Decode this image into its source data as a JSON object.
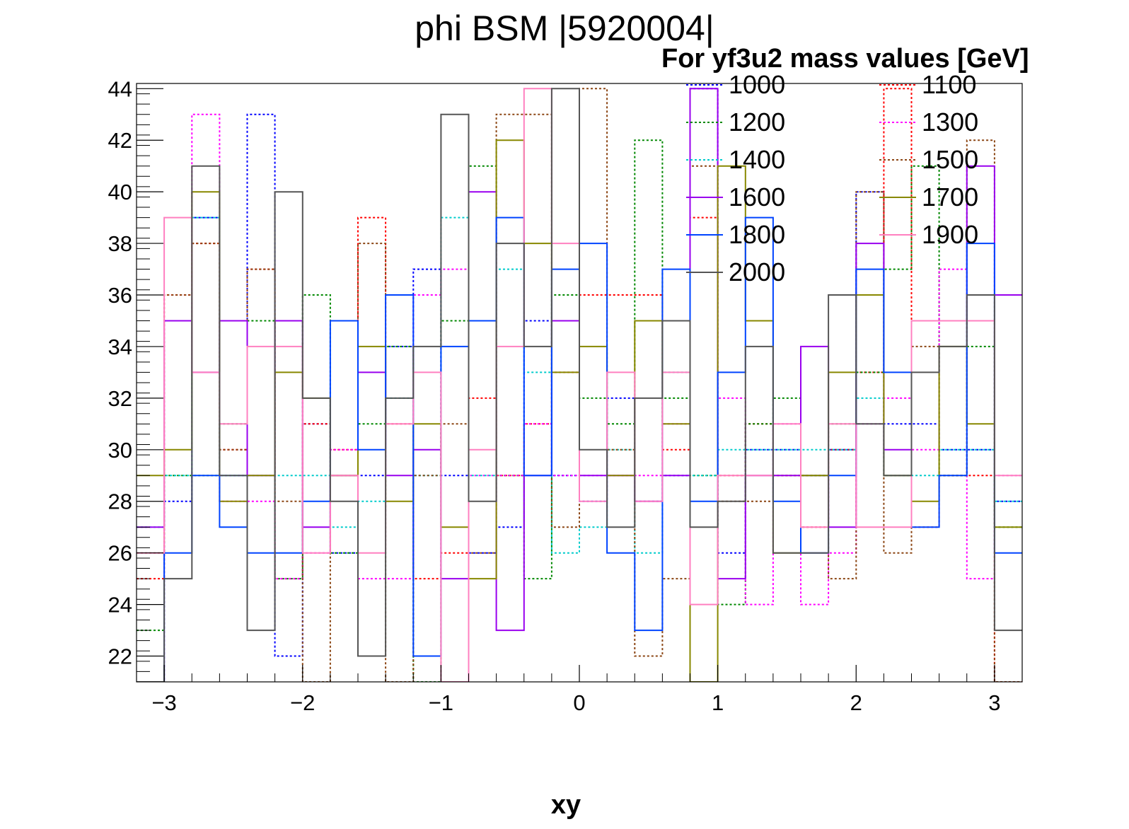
{
  "chart_data": {
    "type": "line",
    "style": "step-histogram",
    "title": "phi BSM |5920004|",
    "xlabel": "xy",
    "ylabel": "",
    "xlim": [
      -3.2,
      3.2
    ],
    "ylim": [
      21,
      44.2
    ],
    "xticks": [
      -3,
      -2,
      -1,
      0,
      1,
      2,
      3
    ],
    "xtick_labels": [
      "−3",
      "−2",
      "−1",
      "0",
      "1",
      "2",
      "3"
    ],
    "yticks": [
      22,
      24,
      26,
      28,
      30,
      32,
      34,
      36,
      38,
      40,
      42,
      44
    ],
    "ytick_labels": [
      "22",
      "24",
      "26",
      "28",
      "30",
      "32",
      "34",
      "36",
      "38",
      "40",
      "42",
      "44"
    ],
    "grid": false,
    "legend": {
      "title": "For yf3u2 mass values [GeV]",
      "position": "top-right",
      "columns": 2
    },
    "bin_edges": [
      -3.2,
      -3.0,
      -2.8,
      -2.6,
      -2.4,
      -2.2,
      -2.0,
      -1.8,
      -1.6,
      -1.4,
      -1.2,
      -1.0,
      -0.8,
      -0.6,
      -0.4,
      -0.2,
      0.0,
      0.2,
      0.4,
      0.6,
      0.8,
      1.0,
      1.2,
      1.4,
      1.6,
      1.8,
      2.0,
      2.2,
      2.4,
      2.6,
      2.8,
      3.0,
      3.2
    ],
    "series": [
      {
        "name": "1000",
        "color": "#0000ff",
        "dashed": true,
        "values": [
          21,
          28,
          39,
          29,
          43,
          22,
          31,
          26,
          29,
          34,
          37,
          29,
          26,
          27,
          35,
          29,
          28,
          32,
          28,
          29,
          44,
          26,
          30,
          30,
          29,
          30,
          40,
          31,
          31,
          30,
          30,
          28
        ]
      },
      {
        "name": "1100",
        "color": "#ff0000",
        "dashed": true,
        "values": [
          25,
          36,
          38,
          30,
          37,
          25,
          31,
          30,
          39,
          31,
          25,
          26,
          32,
          29,
          31,
          33,
          36,
          36,
          36,
          30,
          39,
          29,
          31,
          29,
          27,
          30,
          33,
          44,
          27,
          29,
          29,
          21
        ]
      },
      {
        "name": "1200",
        "color": "#008800",
        "dashed": true,
        "values": [
          23,
          29,
          29,
          31,
          35,
          25,
          36,
          26,
          31,
          34,
          21,
          35,
          41,
          29,
          25,
          36,
          32,
          31,
          42,
          32,
          29,
          24,
          31,
          32,
          29,
          31,
          33,
          37,
          41,
          29,
          34,
          27
        ]
      },
      {
        "name": "1300",
        "color": "#ff00ff",
        "dashed": true,
        "values": [
          21,
          35,
          43,
          28,
          28,
          25,
          26,
          30,
          25,
          25,
          36,
          37,
          29,
          29,
          31,
          29,
          29,
          29,
          29,
          31,
          44,
          32,
          24,
          31,
          24,
          26,
          31,
          32,
          30,
          37,
          25,
          29
        ]
      },
      {
        "name": "1400",
        "color": "#00cccc",
        "dashed": true,
        "values": [
          27,
          29,
          39,
          29,
          29,
          29,
          29,
          27,
          28,
          32,
          29,
          39,
          29,
          37,
          33,
          26,
          27,
          30,
          26,
          33,
          29,
          30,
          30,
          30,
          30,
          30,
          32,
          29,
          29,
          30,
          30,
          28
        ]
      },
      {
        "name": "1500",
        "color": "#8b4513",
        "dashed": true,
        "values": [
          26,
          36,
          38,
          30,
          37,
          28,
          21,
          29,
          38,
          21,
          29,
          31,
          26,
          43,
          43,
          27,
          44,
          30,
          22,
          25,
          41,
          28,
          28,
          29,
          29,
          25,
          40,
          26,
          34,
          29,
          42,
          21
        ]
      },
      {
        "name": "1600",
        "color": "#9900ee",
        "dashed": false,
        "values": [
          27,
          35,
          33,
          35,
          29,
          35,
          27,
          29,
          33,
          29,
          30,
          25,
          40,
          23,
          29,
          35,
          29,
          29,
          28,
          29,
          44,
          25,
          29,
          29,
          34,
          27,
          38,
          30,
          35,
          35,
          41,
          36
        ]
      },
      {
        "name": "1700",
        "color": "#888800",
        "dashed": false,
        "values": [
          29,
          30,
          40,
          28,
          29,
          33,
          32,
          29,
          34,
          28,
          31,
          27,
          25,
          42,
          38,
          33,
          34,
          29,
          35,
          31,
          21,
          41,
          35,
          26,
          29,
          33,
          36,
          29,
          28,
          34,
          31,
          27
        ]
      },
      {
        "name": "1800",
        "color": "#0044ff",
        "dashed": false,
        "values": [
          21,
          26,
          29,
          27,
          26,
          26,
          28,
          35,
          30,
          36,
          22,
          34,
          35,
          39,
          29,
          37,
          38,
          26,
          23,
          37,
          28,
          33,
          39,
          28,
          26,
          29,
          37,
          33,
          27,
          29,
          38,
          26
        ]
      },
      {
        "name": "1900",
        "color": "#ff80c0",
        "dashed": false,
        "values": [
          26,
          39,
          33,
          31,
          34,
          34,
          26,
          29,
          26,
          31,
          33,
          21,
          30,
          34,
          44,
          38,
          28,
          33,
          28,
          33,
          24,
          29,
          29,
          31,
          27,
          31,
          27,
          27,
          35,
          35,
          35,
          29
        ]
      },
      {
        "name": "2000",
        "color": "#555555",
        "dashed": false,
        "values": [
          21,
          25,
          41,
          29,
          23,
          40,
          32,
          28,
          22,
          32,
          34,
          43,
          28,
          38,
          34,
          44,
          30,
          27,
          32,
          35,
          27,
          28,
          34,
          26,
          26,
          36,
          31,
          29,
          33,
          34,
          36,
          23
        ]
      }
    ]
  }
}
